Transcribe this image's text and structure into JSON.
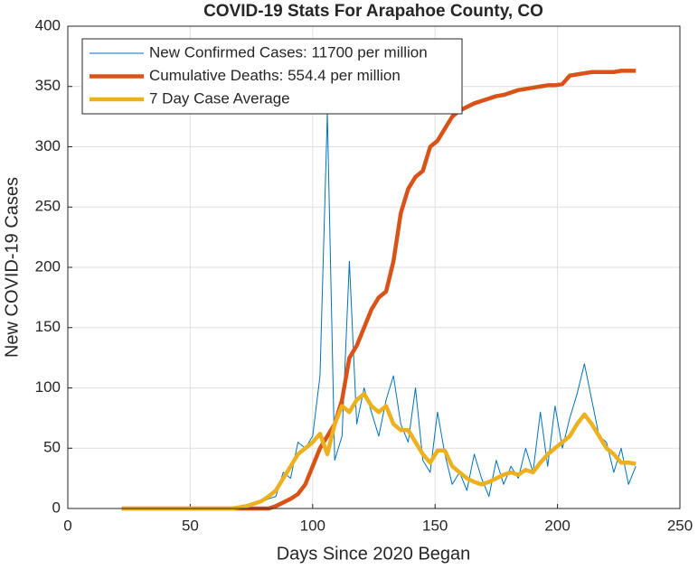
{
  "chart_data": {
    "type": "line",
    "title": "COVID-19 Stats For Arapahoe County, CO",
    "x_label": "Days Since 2020 Began",
    "y_label": "New COVID-19 Cases",
    "x": [
      22,
      25,
      28,
      31,
      34,
      37,
      40,
      43,
      46,
      49,
      52,
      55,
      58,
      61,
      64,
      67,
      70,
      73,
      76,
      79,
      82,
      85,
      88,
      91,
      94,
      97,
      100,
      103,
      106,
      109,
      112,
      115,
      118,
      121,
      124,
      127,
      130,
      133,
      136,
      139,
      142,
      145,
      148,
      151,
      154,
      157,
      160,
      163,
      166,
      169,
      172,
      175,
      178,
      181,
      184,
      187,
      190,
      193,
      196,
      199,
      202,
      205,
      208,
      211,
      214,
      217,
      220,
      223,
      226,
      229,
      232
    ],
    "series": [
      {
        "name": "New Confirmed Cases: 11700 per million",
        "color": "#0072bd",
        "width": 1,
        "values": [
          0,
          0,
          0,
          0,
          0,
          0,
          0,
          0,
          0,
          0,
          0,
          0,
          0,
          0,
          0,
          0,
          0,
          2,
          3,
          5,
          8,
          10,
          30,
          25,
          55,
          50,
          60,
          110,
          328,
          40,
          60,
          205,
          70,
          100,
          80,
          60,
          90,
          110,
          70,
          55,
          100,
          40,
          30,
          80,
          45,
          20,
          30,
          15,
          45,
          25,
          10,
          40,
          20,
          35,
          25,
          50,
          30,
          80,
          35,
          85,
          50,
          75,
          95,
          120,
          90,
          60,
          55,
          30,
          50,
          20,
          35
        ]
      },
      {
        "name": "Cumulative Deaths: 554.4 per million",
        "color": "#d95319",
        "width": 4.5,
        "values": [
          0,
          0,
          0,
          0,
          0,
          0,
          0,
          0,
          0,
          0,
          0,
          0,
          0,
          0,
          0,
          0,
          0,
          0,
          0,
          0,
          0,
          2,
          5,
          8,
          12,
          20,
          35,
          50,
          60,
          70,
          90,
          125,
          135,
          150,
          165,
          175,
          180,
          205,
          245,
          265,
          275,
          280,
          300,
          305,
          315,
          325,
          330,
          333,
          336,
          338,
          340,
          342,
          343,
          345,
          347,
          348,
          349,
          350,
          351,
          351,
          352,
          359,
          360,
          361,
          362,
          362,
          362,
          362,
          363,
          363,
          363
        ]
      },
      {
        "name": "7 Day Case Average",
        "color": "#edb120",
        "width": 4.5,
        "values": [
          0,
          0,
          0,
          0,
          0,
          0,
          0,
          0,
          0,
          0,
          0,
          0,
          0,
          0,
          0,
          0,
          1,
          2,
          4,
          6,
          10,
          15,
          25,
          35,
          45,
          50,
          55,
          62,
          45,
          70,
          85,
          80,
          90,
          95,
          85,
          80,
          85,
          70,
          65,
          65,
          55,
          45,
          38,
          48,
          48,
          35,
          30,
          25,
          22,
          20,
          22,
          25,
          28,
          30,
          28,
          32,
          30,
          38,
          45,
          50,
          55,
          60,
          70,
          78,
          70,
          60,
          50,
          45,
          38,
          38,
          37
        ]
      }
    ],
    "xlim": [
      0,
      250
    ],
    "xticks": [
      0,
      50,
      100,
      150,
      200,
      250
    ],
    "ylim": [
      0,
      400
    ],
    "yticks": [
      0,
      50,
      100,
      150,
      200,
      250,
      300,
      350,
      400
    ],
    "grid": true,
    "legend": "upper-left"
  }
}
